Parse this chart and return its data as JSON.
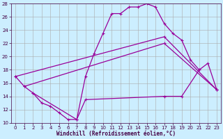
{
  "xlabel": "Windchill (Refroidissement éolien,°C)",
  "background_color": "#cceeff",
  "grid_color": "#aaaaaa",
  "line_color": "#990099",
  "xlim": [
    -0.5,
    23.5
  ],
  "ylim": [
    10,
    28
  ],
  "xticks": [
    0,
    1,
    2,
    3,
    4,
    5,
    6,
    7,
    8,
    9,
    10,
    11,
    12,
    13,
    14,
    15,
    16,
    17,
    18,
    19,
    20,
    21,
    22,
    23
  ],
  "yticks": [
    10,
    12,
    14,
    16,
    18,
    20,
    22,
    24,
    26,
    28
  ],
  "line1_x": [
    0,
    1,
    2,
    3,
    4,
    5,
    6,
    7,
    8,
    9,
    10,
    11,
    12,
    13,
    14,
    15,
    16,
    17,
    18,
    19,
    20,
    21
  ],
  "line1_y": [
    17,
    15.5,
    14.5,
    13,
    12.5,
    11.5,
    10.5,
    10.5,
    17,
    20.5,
    23.5,
    26.5,
    26.5,
    27.5,
    27.5,
    28,
    27.5,
    25,
    23.5,
    22.5,
    19.5,
    18
  ],
  "line2_x": [
    0,
    17,
    23
  ],
  "line2_y": [
    17,
    23,
    15
  ],
  "line3_x": [
    1,
    17,
    23
  ],
  "line3_y": [
    15.5,
    22,
    15
  ],
  "line4_x": [
    2,
    7,
    8,
    17,
    19,
    21,
    22,
    23
  ],
  "line4_y": [
    14.5,
    10.5,
    13.5,
    14,
    14,
    18,
    19,
    15
  ]
}
